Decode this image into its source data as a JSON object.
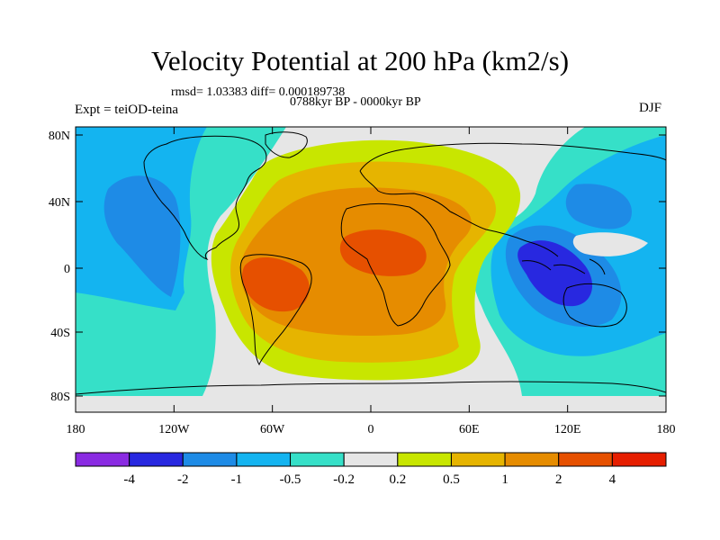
{
  "title": "Velocity Potential at 200 hPa (km2/s)",
  "stats_line": "rmsd= 1.03383 diff= 0.000189738",
  "period_line": "0788kyr BP - 0000kyr BP",
  "left_label": "Expt = teiOD-teina",
  "right_label": "DJF",
  "lat_ticks": [
    "80N",
    "40N",
    "0",
    "40S",
    "80S"
  ],
  "lon_ticks": [
    "180",
    "120W",
    "60W",
    "0",
    "60E",
    "120E",
    "180"
  ],
  "colorbar": {
    "colors": [
      "#8a2be2",
      "#2828e0",
      "#1e8be6",
      "#14b4f0",
      "#36e0c8",
      "#e6e6e6",
      "#c8e600",
      "#e6b400",
      "#e68c00",
      "#e65000",
      "#e61e00"
    ],
    "labels": [
      "-4",
      "-2",
      "-1",
      "-0.5",
      "-0.2",
      "0.2",
      "0.5",
      "1",
      "2",
      "4"
    ]
  }
}
